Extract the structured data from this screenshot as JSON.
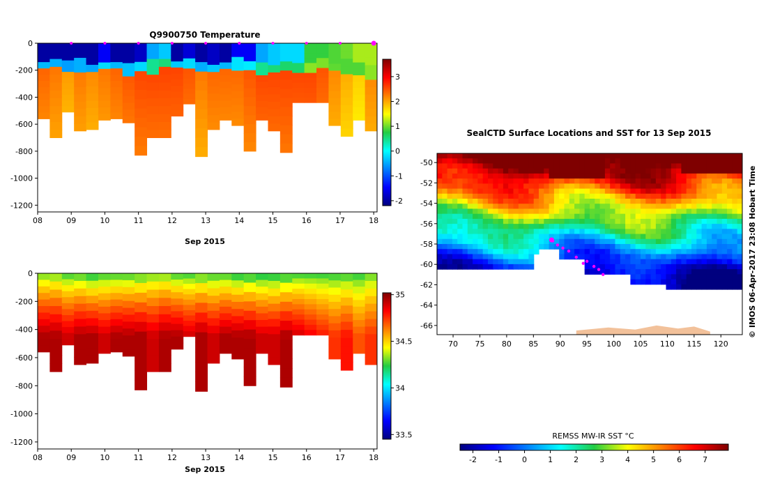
{
  "chart_data": [
    {
      "type": "heatmap",
      "title": "Q9900750  Temperature",
      "xlabel": "Sep 2015",
      "x_ticks": [
        "08",
        "09",
        "10",
        "11",
        "12",
        "13",
        "14",
        "15",
        "16",
        "17",
        "18"
      ],
      "x_range": [
        8,
        18.1
      ],
      "y_ticks": [
        "0",
        "-200",
        "-400",
        "-600",
        "-800",
        "-1000",
        "-1200"
      ],
      "y_range": [
        -1250,
        0
      ],
      "colorbar_ticks": [
        "3",
        "2",
        "1",
        "0",
        "-1",
        "-2"
      ],
      "colorbar_range": [
        -2.2,
        3.7
      ],
      "profile_markers_day": [
        9,
        10,
        11,
        12,
        13,
        14,
        15,
        16,
        17,
        18
      ],
      "profile_depths_m": [
        560,
        700,
        510,
        650,
        640,
        570,
        560,
        590,
        830,
        700,
        700,
        540,
        450,
        840,
        640,
        570,
        610,
        800,
        570,
        650,
        810,
        440,
        440,
        440,
        610,
        690,
        570,
        650
      ],
      "surface_layer_depth_m": [
        150,
        140,
        150,
        140,
        150,
        145,
        150,
        160,
        130,
        150,
        140,
        130,
        140,
        150,
        150,
        140,
        130,
        150,
        160,
        160,
        160,
        150,
        160,
        140,
        150,
        150,
        170,
        190
      ],
      "surface_temperature_C": [
        -2.0,
        -2.0,
        -2.0,
        -2.0,
        -2.0,
        -1.5,
        -2.0,
        -2.0,
        -1.8,
        -0.5,
        -0.3,
        -2.0,
        -1.7,
        -2.0,
        -1.8,
        -2.0,
        -1.5,
        -1.5,
        -0.5,
        -0.3,
        -0.2,
        -0.2,
        0.8,
        0.8,
        0.9,
        1.0,
        1.2,
        1.2
      ],
      "deep_temperature_C": [
        2.4,
        2.3,
        2.1,
        2.3,
        2.2,
        2.3,
        2.4,
        2.5,
        2.6,
        2.6,
        2.6,
        2.6,
        2.5,
        2.3,
        2.4,
        2.4,
        2.4,
        2.5,
        2.6,
        2.6,
        2.6,
        2.6,
        2.6,
        2.5,
        2.2,
        2.0,
        1.8,
        2.2
      ]
    },
    {
      "type": "heatmap",
      "title": "",
      "xlabel": "Sep 2015",
      "x_ticks": [
        "08",
        "09",
        "10",
        "11",
        "12",
        "13",
        "14",
        "15",
        "16",
        "17",
        "18"
      ],
      "x_range": [
        8,
        18.1
      ],
      "y_ticks": [
        "0",
        "-200",
        "-400",
        "-600",
        "-800",
        "-1000",
        "-1200"
      ],
      "y_range": [
        -1250,
        0
      ],
      "colorbar_ticks": [
        "35",
        "34.5",
        "34",
        "33.5"
      ],
      "colorbar_range": [
        33.45,
        35.02
      ],
      "surface_salinity": [
        34.25,
        34.25,
        34.2,
        34.2,
        34.15,
        34.2,
        34.2,
        34.2,
        34.2,
        34.25,
        34.25,
        34.2,
        34.2,
        34.2,
        34.2,
        34.2,
        34.15,
        34.15,
        34.15,
        34.15,
        34.15,
        34.2,
        34.2,
        34.2,
        34.2,
        34.2,
        34.2,
        34.25
      ],
      "deep_salinity": [
        34.95,
        34.95,
        34.9,
        34.95,
        34.95,
        34.9,
        34.95,
        34.95,
        34.95,
        34.9,
        34.95,
        34.95,
        34.9,
        34.95,
        34.9,
        34.95,
        34.95,
        34.95,
        34.9,
        34.9,
        34.95,
        34.9,
        34.85,
        34.8,
        34.75,
        34.8,
        34.7,
        34.75
      ]
    },
    {
      "type": "heatmap",
      "title": "SealCTD Surface Locations and SST for 13 Sep 2015",
      "x_ticks": [
        "70",
        "75",
        "80",
        "85",
        "90",
        "95",
        "100",
        "105",
        "110",
        "115",
        "120"
      ],
      "x_range": [
        67,
        124
      ],
      "y_ticks": [
        "-50",
        "-52",
        "-54",
        "-56",
        "-58",
        "-60",
        "-62",
        "-64",
        "-66"
      ],
      "y_range": [
        -66.9,
        -49.1
      ],
      "colorbar_label": "REMSS MW-IR SST °C",
      "colorbar_ticks": [
        "-2",
        "-1",
        "0",
        "1",
        "2",
        "3",
        "4",
        "5",
        "6",
        "7"
      ],
      "colorbar_range": [
        -2.5,
        7.9
      ],
      "track_points": [
        {
          "lon": 88.6,
          "lat": -57.7
        },
        {
          "lon": 89.5,
          "lat": -58.1
        },
        {
          "lon": 90.5,
          "lat": -58.4
        },
        {
          "lon": 91.6,
          "lat": -58.7
        },
        {
          "lon": 93.0,
          "lat": -59.3
        },
        {
          "lon": 94.3,
          "lat": -59.9
        },
        {
          "lon": 95.0,
          "lat": -59.7
        },
        {
          "lon": 96.3,
          "lat": -60.2
        },
        {
          "lon": 97.2,
          "lat": -60.5
        },
        {
          "lon": 98.0,
          "lat": -61.0
        }
      ],
      "current_location": {
        "lon": 88.4,
        "lat": -57.6
      }
    }
  ],
  "side_label": "© IMOS 06-Apr-2017 23:08 Hobart Time"
}
